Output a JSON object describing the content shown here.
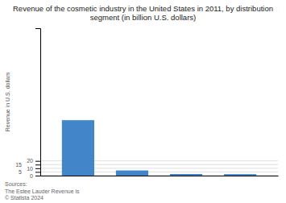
{
  "chart_data": {
    "type": "bar",
    "title": "Revenue of the cosmetic industry in the United States in 2011, by distribution\nsegment (in billion U.S. dollars)",
    "categories": [
      null,
      null,
      null,
      null
    ],
    "values": [
      75.2,
      7.0,
      2.2,
      2.0
    ],
    "color": "#4285c8",
    "ylabel": "Revenue in U.S. dollars",
    "ylim": [
      0,
      200
    ],
    "yticks": [
      0,
      5,
      10,
      15,
      20
    ],
    "grid": true,
    "annotations": [
      "Sources:\nThe Estee Lauder Revenue is\n© Statista 2024"
    ]
  }
}
